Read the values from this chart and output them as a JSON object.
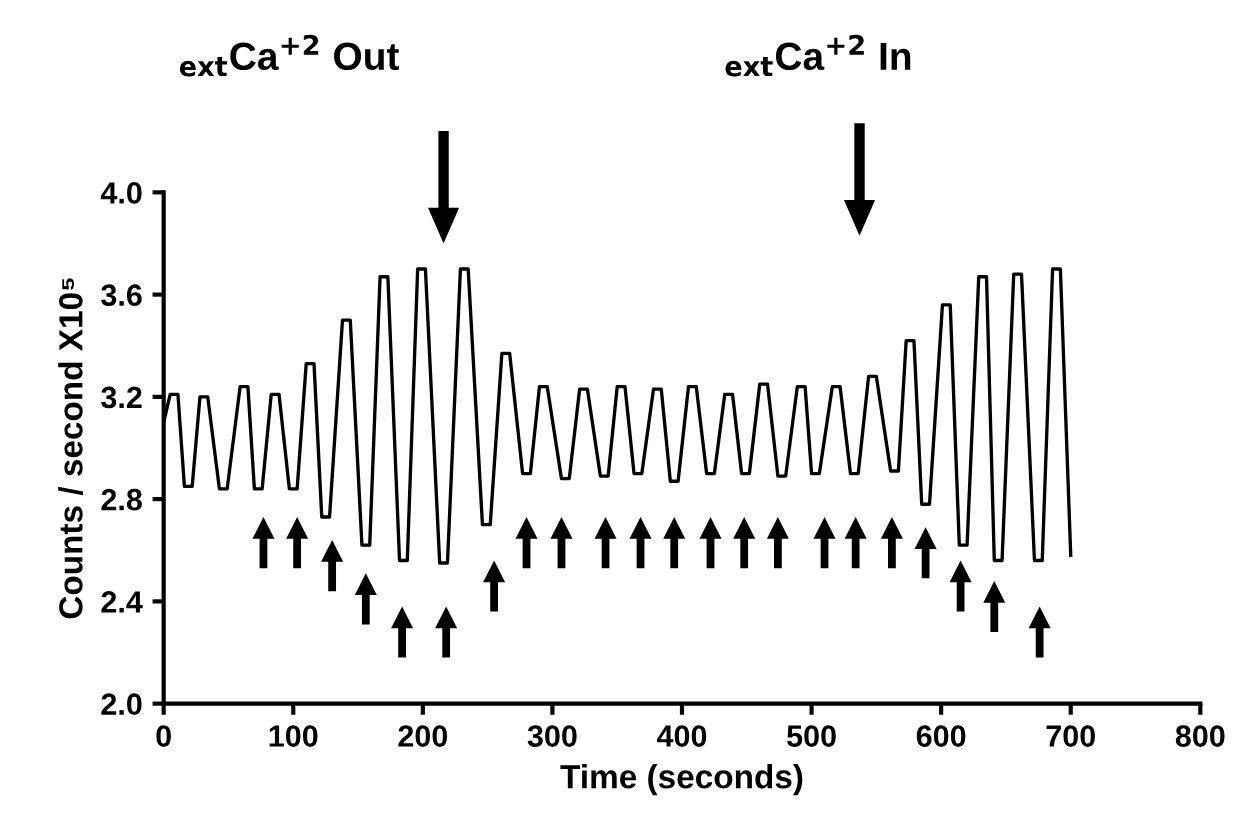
{
  "chart_data": {
    "type": "line",
    "xlabel": "Time (seconds)",
    "ylabel": "Counts / second X10⁵",
    "xlim": [
      0,
      800
    ],
    "xticks": [
      0,
      100,
      200,
      300,
      400,
      500,
      600,
      700,
      800
    ],
    "ylim": [
      2.0,
      4.0
    ],
    "yticks": [
      {
        "value": 2.0,
        "label": "2.0"
      },
      {
        "value": 2.4,
        "label": "2.4"
      },
      {
        "value": 2.8,
        "label": "2.8"
      },
      {
        "value": 3.2,
        "label": "3.2"
      },
      {
        "value": 3.6,
        "label": "3.6"
      },
      {
        "value": 4.0,
        "label": "4.0"
      }
    ],
    "grid": false,
    "legend": false,
    "marker": "none",
    "line_style": "solid",
    "series": [
      {
        "color": "#000000",
        "x": [
          0,
          5,
          11,
          16,
          22,
          28,
          34,
          43,
          49,
          59,
          65,
          70,
          76,
          83,
          89,
          97,
          103,
          110,
          116,
          122,
          128,
          138,
          144,
          153,
          159,
          167,
          173,
          182,
          188,
          196,
          202,
          213,
          219,
          229,
          235,
          246,
          252,
          261,
          267,
          277,
          283,
          290,
          296,
          307,
          313,
          321,
          327,
          337,
          343,
          350,
          356,
          363,
          369,
          378,
          384,
          391,
          397,
          405,
          411,
          419,
          425,
          433,
          439,
          446,
          452,
          460,
          466,
          474,
          480,
          489,
          495,
          500,
          506,
          516,
          522,
          530,
          536,
          544,
          550,
          561,
          567,
          573,
          579,
          585,
          591,
          601,
          607,
          614,
          620,
          629,
          635,
          641,
          647,
          656,
          662,
          672,
          678,
          686,
          692,
          700
        ],
        "values": [
          3.1,
          3.21,
          3.21,
          2.85,
          2.85,
          3.2,
          3.2,
          2.84,
          2.84,
          3.24,
          3.24,
          2.84,
          2.84,
          3.21,
          3.21,
          2.84,
          2.84,
          3.33,
          3.33,
          2.73,
          2.73,
          3.5,
          3.5,
          2.62,
          2.62,
          3.67,
          3.67,
          2.56,
          2.56,
          3.7,
          3.7,
          2.55,
          2.55,
          3.7,
          3.7,
          2.7,
          2.7,
          3.37,
          3.37,
          2.9,
          2.9,
          3.24,
          3.24,
          2.88,
          2.88,
          3.23,
          3.23,
          2.89,
          2.89,
          3.24,
          3.24,
          2.9,
          2.9,
          3.23,
          3.23,
          2.87,
          2.87,
          3.24,
          3.24,
          2.9,
          2.9,
          3.21,
          3.21,
          2.9,
          2.9,
          3.25,
          3.25,
          2.89,
          2.89,
          3.24,
          3.24,
          2.9,
          2.9,
          3.24,
          3.24,
          2.9,
          2.9,
          3.28,
          3.28,
          2.91,
          2.91,
          3.42,
          3.42,
          2.78,
          2.78,
          3.56,
          3.56,
          2.62,
          2.62,
          3.67,
          3.67,
          2.56,
          2.56,
          3.68,
          3.68,
          2.56,
          2.56,
          3.7,
          3.7,
          2.58
        ]
      }
    ],
    "annotations": [
      "$_{ext}$Ca$^{+2}$ Out",
      "$_{ext}$Ca$^{+2}$ In"
    ]
  }
}
